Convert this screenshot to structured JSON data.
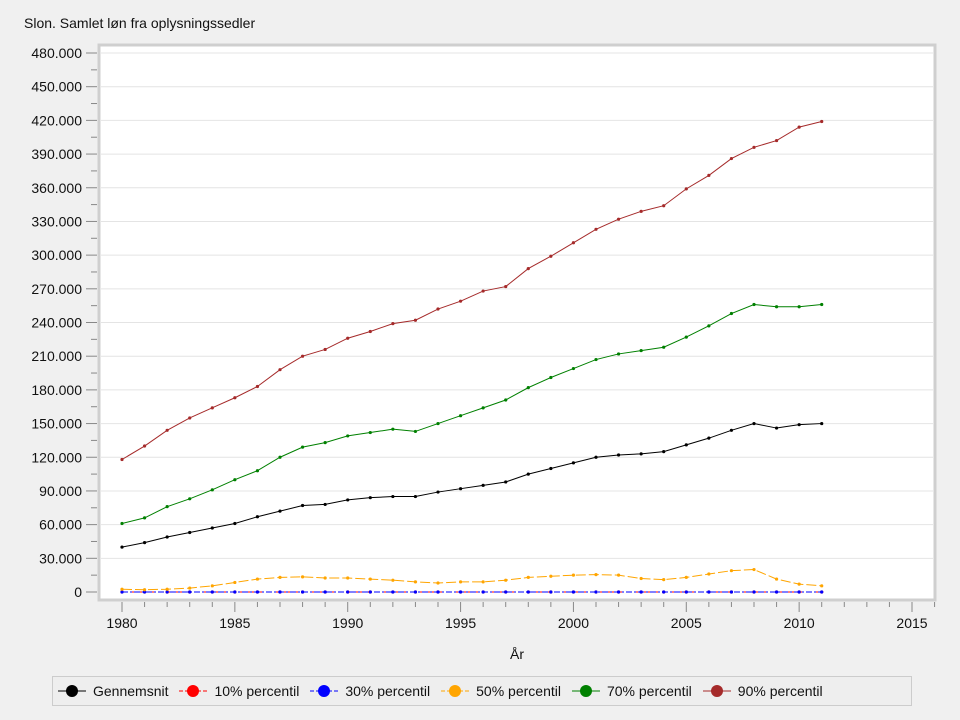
{
  "chart_data": {
    "type": "line",
    "title": "Slon. Samlet løn fra oplysningssedler",
    "xlabel": "År",
    "ylabel": "",
    "xlim": [
      1979,
      2016
    ],
    "ylim": [
      0,
      480000
    ],
    "y_ticks": [
      0,
      30000,
      60000,
      90000,
      120000,
      150000,
      180000,
      210000,
      240000,
      270000,
      300000,
      330000,
      360000,
      390000,
      420000,
      450000,
      480000
    ],
    "y_tick_labels": [
      "0",
      "30.000",
      "60.000",
      "90.000",
      "120.000",
      "150.000",
      "180.000",
      "210.000",
      "240.000",
      "270.000",
      "300.000",
      "330.000",
      "360.000",
      "390.000",
      "420.000",
      "450.000",
      "480.000"
    ],
    "x_ticks": [
      1980,
      1985,
      1990,
      1995,
      2000,
      2005,
      2010,
      2015
    ],
    "x_tick_labels": [
      "1980",
      "1985",
      "1990",
      "1995",
      "2000",
      "2005",
      "2010",
      "2015"
    ],
    "grid": true,
    "legend_position": "bottom",
    "x": [
      1980,
      1981,
      1982,
      1983,
      1984,
      1985,
      1986,
      1987,
      1988,
      1989,
      1990,
      1991,
      1992,
      1993,
      1994,
      1995,
      1996,
      1997,
      1998,
      1999,
      2000,
      2001,
      2002,
      2003,
      2004,
      2005,
      2006,
      2007,
      2008,
      2009,
      2010,
      2011
    ],
    "series": [
      {
        "name": "Gennemsnit",
        "color": "#000000",
        "dash": "solid",
        "values": [
          40000,
          44000,
          49000,
          53000,
          57000,
          61000,
          67000,
          72000,
          77000,
          78000,
          82000,
          84000,
          85000,
          85000,
          89000,
          92000,
          95000,
          98000,
          105000,
          110000,
          115000,
          120000,
          122000,
          123000,
          125000,
          131000,
          137000,
          144000,
          150000,
          146000,
          149000,
          150000
        ]
      },
      {
        "name": "10% percentil",
        "color": "#ff0000",
        "dash": "dashed",
        "values": [
          0,
          0,
          0,
          0,
          0,
          0,
          0,
          0,
          0,
          0,
          0,
          0,
          0,
          0,
          0,
          0,
          0,
          0,
          0,
          0,
          0,
          0,
          0,
          0,
          0,
          0,
          0,
          0,
          0,
          0,
          0,
          0
        ]
      },
      {
        "name": "30% percentil",
        "color": "#0000ff",
        "dash": "dashdot",
        "values": [
          0,
          0,
          0,
          0,
          0,
          0,
          0,
          0,
          0,
          0,
          0,
          0,
          0,
          0,
          0,
          0,
          0,
          0,
          0,
          0,
          0,
          0,
          0,
          0,
          0,
          0,
          0,
          0,
          0,
          0,
          0,
          0
        ]
      },
      {
        "name": "50% percentil",
        "color": "#ffa500",
        "dash": "longdash",
        "values": [
          2500,
          2000,
          2500,
          3500,
          5500,
          8500,
          11500,
          13000,
          13500,
          12500,
          12500,
          11500,
          10500,
          9000,
          8000,
          9000,
          9000,
          10500,
          13000,
          14000,
          15000,
          15500,
          15000,
          12000,
          11000,
          13000,
          16000,
          19000,
          20000,
          11500,
          7000,
          5500
        ]
      },
      {
        "name": "70% percentil",
        "color": "#008000",
        "dash": "solid",
        "values": [
          61000,
          66000,
          76000,
          83000,
          91000,
          100000,
          108000,
          120000,
          129000,
          133000,
          139000,
          142000,
          145000,
          143000,
          150000,
          157000,
          164000,
          171000,
          182000,
          191000,
          199000,
          207000,
          212000,
          215000,
          218000,
          227000,
          237000,
          248000,
          256000,
          254000,
          254000,
          256000
        ]
      },
      {
        "name": "90% percentil",
        "color": "#a52a2a",
        "dash": "solid",
        "values": [
          118000,
          130000,
          144000,
          155000,
          164000,
          173000,
          183000,
          198000,
          210000,
          216000,
          226000,
          232000,
          239000,
          242000,
          252000,
          259000,
          268000,
          272000,
          288000,
          299000,
          311000,
          323000,
          332000,
          339000,
          344000,
          359000,
          371000,
          386000,
          396000,
          402000,
          414000,
          419000
        ]
      }
    ]
  }
}
